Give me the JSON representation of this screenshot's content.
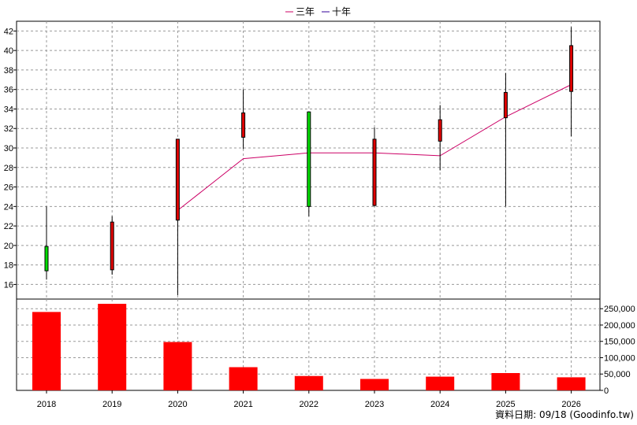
{
  "legend": [
    {
      "label": "三年",
      "color": "#cc0066"
    },
    {
      "label": "十年",
      "color": "#330099"
    }
  ],
  "footer": "資料日期: 09/18 (Goodinfo.tw)",
  "colors": {
    "up_candle": "#e00000",
    "down_candle": "#00dd00",
    "volume_bar": "#ff0000",
    "grid": "#999999",
    "line": "#cc0066"
  },
  "chart_data": [
    {
      "type": "candlestick",
      "categories": [
        "2018",
        "2019",
        "2020",
        "2021",
        "2022",
        "2023",
        "2024",
        "2025",
        "2026"
      ],
      "ylim": [
        14.5,
        43
      ],
      "yticks": [
        16,
        18,
        20,
        22,
        24,
        26,
        28,
        30,
        32,
        34,
        36,
        38,
        40,
        42
      ],
      "candles": [
        {
          "x": "2018",
          "open": 17.4,
          "close": 19.9,
          "high": 24.0,
          "low": 16.5,
          "color": "green"
        },
        {
          "x": "2019",
          "open": 17.5,
          "close": 22.4,
          "high": 23.0,
          "low": 17.0,
          "color": "red"
        },
        {
          "x": "2020",
          "open": 22.6,
          "close": 30.9,
          "high": 30.9,
          "low": 14.9,
          "color": "red"
        },
        {
          "x": "2021",
          "open": 31.1,
          "close": 33.6,
          "high": 36.0,
          "low": 29.9,
          "color": "red"
        },
        {
          "x": "2022",
          "open": 24.0,
          "close": 33.7,
          "high": 33.7,
          "low": 23.0,
          "color": "green"
        },
        {
          "x": "2023",
          "open": 24.1,
          "close": 30.9,
          "high": 32.1,
          "low": 24.0,
          "color": "red"
        },
        {
          "x": "2024",
          "open": 30.7,
          "close": 32.9,
          "high": 34.4,
          "low": 27.7,
          "color": "red"
        },
        {
          "x": "2025",
          "open": 33.1,
          "close": 35.7,
          "high": 37.7,
          "low": 24.0,
          "color": "red"
        },
        {
          "x": "2026",
          "open": 35.8,
          "close": 40.5,
          "high": 42.4,
          "low": 31.2,
          "color": "red"
        }
      ],
      "series": [
        {
          "name": "三年",
          "x": [
            "2020",
            "2021",
            "2022",
            "2023",
            "2024",
            "2025",
            "2026"
          ],
          "values": [
            23.6,
            28.9,
            29.5,
            29.5,
            29.2,
            33.2,
            36.5
          ]
        }
      ]
    },
    {
      "type": "bar",
      "categories": [
        "2018",
        "2019",
        "2020",
        "2021",
        "2022",
        "2023",
        "2024",
        "2025",
        "2026"
      ],
      "values": [
        240000,
        265000,
        148000,
        71000,
        44000,
        35000,
        42000,
        53000,
        40000
      ],
      "ylim": [
        0,
        265000
      ],
      "yticks": [
        0,
        50000,
        100000,
        150000,
        200000,
        250000
      ],
      "ytick_labels": [
        "0",
        "50,000",
        "100,000",
        "150,000",
        "200,000",
        "250,000"
      ]
    }
  ]
}
